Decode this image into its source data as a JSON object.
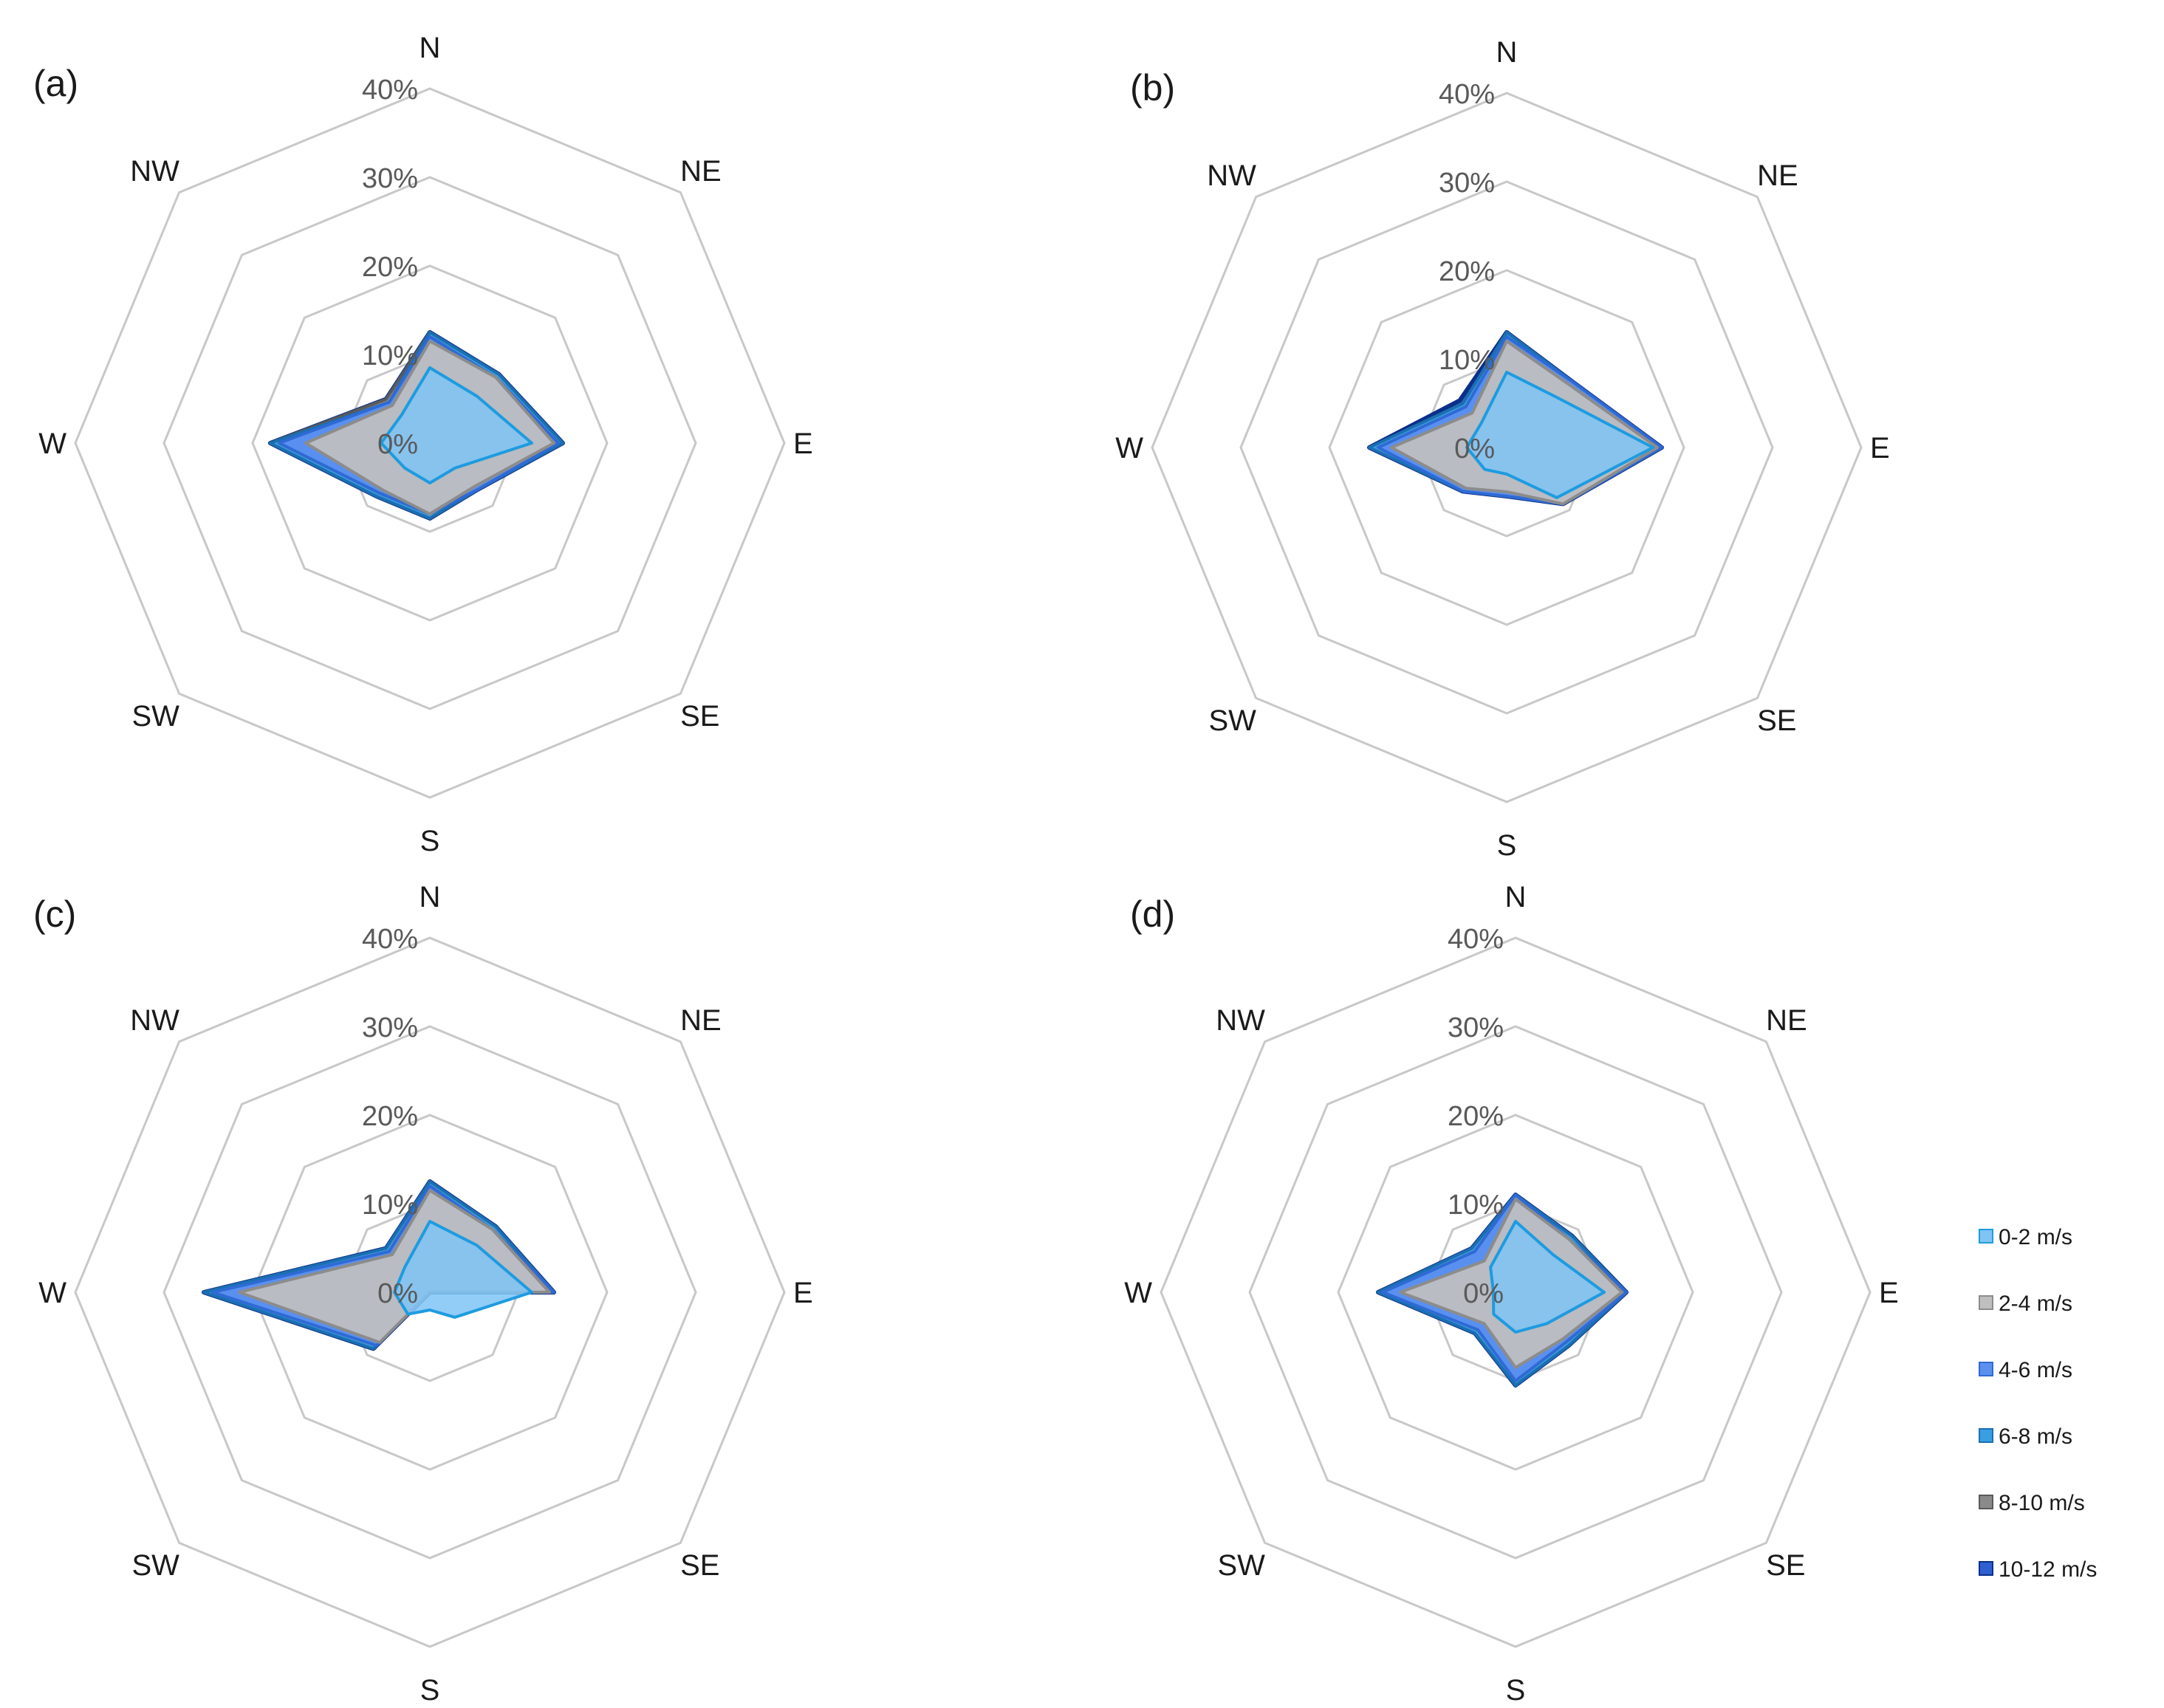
{
  "chart_data": [
    {
      "type": "radar",
      "panel_label": "(a)",
      "directions": [
        "N",
        "NE",
        "E",
        "SE",
        "S",
        "SW",
        "W",
        "NW"
      ],
      "tick_labels": [
        "0%",
        "10%",
        "20%",
        "30%",
        "40%"
      ],
      "rmax": 40,
      "series": [
        {
          "name": "0-2 m/s",
          "values": [
            8.5,
            7.5,
            11.5,
            4.0,
            4.5,
            4.0,
            5.5,
            4.5
          ]
        },
        {
          "name": "2-4 m/s",
          "values": [
            11.5,
            10.5,
            14.0,
            7.0,
            8.0,
            7.5,
            14.0,
            6.0
          ]
        },
        {
          "name": "4-6 m/s",
          "values": [
            12.0,
            10.5,
            14.5,
            7.5,
            8.0,
            8.0,
            17.0,
            6.5
          ]
        },
        {
          "name": "6-8 m/s",
          "values": [
            12.5,
            11.0,
            15.0,
            7.5,
            8.5,
            8.5,
            18.0,
            6.5
          ]
        },
        {
          "name": "8-10 m/s",
          "values": [
            12.5,
            11.0,
            15.0,
            7.5,
            8.5,
            8.5,
            18.0,
            7.0
          ]
        },
        {
          "name": "10-12 m/s",
          "values": [
            12.5,
            11.0,
            15.0,
            7.5,
            8.5,
            8.5,
            18.0,
            7.0
          ]
        }
      ]
    },
    {
      "type": "radar",
      "panel_label": "(b)",
      "directions": [
        "N",
        "NE",
        "E",
        "SE",
        "S",
        "SW",
        "W",
        "NW"
      ],
      "tick_labels": [
        "0%",
        "10%",
        "20%",
        "30%",
        "40%"
      ],
      "rmax": 40,
      "series": [
        {
          "name": "0-2 m/s",
          "values": [
            8.5,
            8.0,
            16.5,
            8.0,
            3.0,
            3.5,
            4.5,
            4.0
          ]
        },
        {
          "name": "2-4 m/s",
          "values": [
            12.0,
            10.0,
            17.0,
            9.0,
            5.0,
            6.5,
            13.0,
            5.5
          ]
        },
        {
          "name": "4-6 m/s",
          "values": [
            12.5,
            10.5,
            17.5,
            9.0,
            5.5,
            7.0,
            14.5,
            6.5
          ]
        },
        {
          "name": "6-8 m/s",
          "values": [
            13.0,
            10.5,
            17.5,
            9.0,
            5.5,
            7.0,
            15.5,
            7.0
          ]
        },
        {
          "name": "8-10 m/s",
          "values": [
            13.0,
            10.5,
            17.5,
            9.0,
            5.5,
            7.0,
            15.5,
            7.0
          ]
        },
        {
          "name": "10-12 m/s",
          "values": [
            13.0,
            10.5,
            17.5,
            9.0,
            5.5,
            7.0,
            15.5,
            7.5
          ]
        }
      ]
    },
    {
      "type": "radar",
      "panel_label": "(c)",
      "directions": [
        "N",
        "NE",
        "E",
        "SE",
        "S",
        "SW",
        "W",
        "NW"
      ],
      "tick_labels": [
        "0%",
        "10%",
        "20%",
        "30%",
        "40%"
      ],
      "rmax": 40,
      "series": [
        {
          "name": "0-2 m/s",
          "values": [
            8.0,
            7.5,
            11.5,
            4.0,
            2.0,
            3.5,
            4.0,
            4.0
          ]
        },
        {
          "name": "2-4 m/s",
          "values": [
            11.5,
            10.0,
            13.5,
            0.0,
            0.0,
            8.0,
            21.5,
            6.0
          ]
        },
        {
          "name": "4-6 m/s",
          "values": [
            12.0,
            10.0,
            14.0,
            0.0,
            0.0,
            8.5,
            24.5,
            6.5
          ]
        },
        {
          "name": "6-8 m/s",
          "values": [
            12.5,
            10.5,
            14.0,
            0.0,
            0.0,
            9.0,
            25.5,
            7.0
          ]
        },
        {
          "name": "8-10 m/s",
          "values": [
            12.5,
            10.5,
            14.0,
            0.0,
            0.0,
            9.0,
            25.5,
            7.0
          ]
        },
        {
          "name": "10-12 m/s",
          "values": [
            12.5,
            10.5,
            14.0,
            0.0,
            0.0,
            9.0,
            25.5,
            7.0
          ]
        }
      ]
    },
    {
      "type": "radar",
      "panel_label": "(d)",
      "directions": [
        "N",
        "NE",
        "E",
        "SE",
        "S",
        "SW",
        "W",
        "NW"
      ],
      "tick_labels": [
        "0%",
        "10%",
        "20%",
        "30%",
        "40%"
      ],
      "rmax": 40,
      "series": [
        {
          "name": "0-2 m/s",
          "values": [
            8.0,
            6.0,
            10.0,
            5.0,
            4.5,
            3.5,
            2.5,
            4.0
          ]
        },
        {
          "name": "2-4 m/s",
          "values": [
            10.5,
            8.5,
            12.0,
            7.5,
            8.5,
            5.0,
            13.0,
            5.0
          ]
        },
        {
          "name": "4-6 m/s",
          "values": [
            11.0,
            8.5,
            12.5,
            8.0,
            10.0,
            6.0,
            15.0,
            6.5
          ]
        },
        {
          "name": "6-8 m/s",
          "values": [
            11.0,
            9.0,
            12.5,
            8.5,
            10.5,
            6.5,
            15.5,
            7.0
          ]
        },
        {
          "name": "8-10 m/s",
          "values": [
            11.0,
            9.0,
            12.5,
            8.5,
            10.5,
            6.5,
            15.5,
            7.0
          ]
        },
        {
          "name": "10-12 m/s",
          "values": [
            11.0,
            9.0,
            12.5,
            8.5,
            10.5,
            6.5,
            15.5,
            7.0
          ]
        }
      ]
    }
  ],
  "legend": {
    "items": [
      {
        "name": "0-2 m/s",
        "fill": "#7ec4f4",
        "stroke": "#1e9be0"
      },
      {
        "name": "2-4 m/s",
        "fill": "#bfbfbf",
        "stroke": "#8c8c8c"
      },
      {
        "name": "4-6 m/s",
        "fill": "#5b8ff0",
        "stroke": "#2f6ad4"
      },
      {
        "name": "6-8 m/s",
        "fill": "#3a9ee0",
        "stroke": "#1a6fb3"
      },
      {
        "name": "8-10 m/s",
        "fill": "#8a8a8a",
        "stroke": "#5a5a5a"
      },
      {
        "name": "10-12 m/s",
        "fill": "#2f5fd0",
        "stroke": "#0b2f8a"
      }
    ]
  }
}
